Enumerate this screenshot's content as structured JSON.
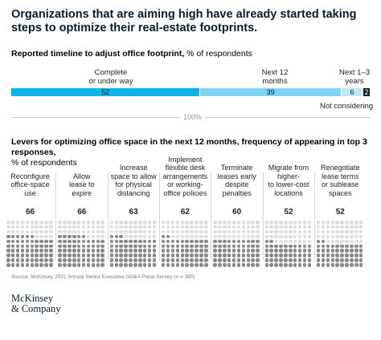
{
  "title": "Organizations that are aiming high have already started taking steps to optimize their real-estate footprints.",
  "chart1": {
    "subtitle_bold": "Reported timeline to adjust office footprint,",
    "subtitle_rest": " % of respondents",
    "total_label": "100%"
  },
  "chart2": {
    "subtitle_bold": "Levers for optimizing office space in the next 12 months, frequency of appearing in top 3 responses,",
    "subtitle_rest": "% of respondents"
  },
  "source": "Source: McKinsey 2021 Annual Senior Executive SG&A Pulse Survey (n = 380)",
  "logo": {
    "line1": "McKinsey",
    "line2": "& Company"
  },
  "colors": {
    "complete": "#0eb4e8",
    "next12": "#7fd3f5",
    "next13": "#bfe9f9",
    "not_considering": "#051c2c",
    "dot_filled": "#888888",
    "dot_empty": "#dddddd"
  },
  "chart_data": [
    {
      "type": "bar",
      "orientation": "horizontal-stacked",
      "series": [
        {
          "name": "Complete or under way",
          "values": [
            52
          ]
        },
        {
          "name": "Next 12 months",
          "values": [
            39
          ]
        },
        {
          "name": "Next 1–3 years",
          "values": [
            6
          ]
        },
        {
          "name": "Not considering",
          "values": [
            2
          ]
        }
      ],
      "total_label": "100%"
    },
    {
      "type": "bar",
      "orientation": "dot-columns",
      "categories": [
        "Reconfigure office-space use",
        "Allow lease to expire",
        "Increase space to allow for physical distancing",
        "Implement flexible desk arrangements or working-office policies",
        "Terminate leases early despite penalties",
        "Migrate from higher- to lower-cost locations",
        "Renegotiate lease terms or sublease spaces"
      ],
      "category_lines": [
        [
          "Reconfigure",
          "office-space",
          "use"
        ],
        [
          "Allow",
          "lease to",
          "expire"
        ],
        [
          "Increase",
          "space to allow",
          "for physical",
          "distancing"
        ],
        [
          "Implement",
          "flexible desk",
          "arrangements",
          "or working-",
          "office policies"
        ],
        [
          "Terminate",
          "leases early",
          "despite",
          "penalties"
        ],
        [
          "Migrate from",
          "higher-",
          "to lower-cost",
          "locations"
        ],
        [
          "Renegotiate",
          "lease terms",
          "or sublease",
          "spaces"
        ]
      ],
      "values": [
        66,
        66,
        63,
        62,
        60,
        52,
        52
      ]
    }
  ]
}
